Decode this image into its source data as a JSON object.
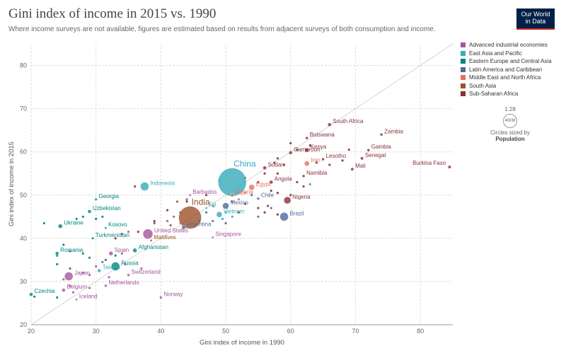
{
  "header": {
    "title": "Gini index of income in 2015 vs. 1990",
    "subtitle": "Where income surveys are not available, figures are estimated based on results from adjacent surveys of both consumption and income.",
    "logo_line1": "Our World",
    "logo_line2": "in Data"
  },
  "legend": {
    "items": [
      {
        "label": "Advanced industrial economies",
        "color": "#a2559c"
      },
      {
        "label": "East Asia and Pacific",
        "color": "#38aaba"
      },
      {
        "label": "Eastern Europe and Central Asia",
        "color": "#00847e"
      },
      {
        "label": "Latin America and Caribbean",
        "color": "#4c6a9c"
      },
      {
        "label": "Middle East and North Africa",
        "color": "#e56e5a"
      },
      {
        "label": "South Asia",
        "color": "#9a5129"
      },
      {
        "label": "Sub-Saharan Africa",
        "color": "#883039"
      }
    ],
    "size_ratio": "1:28",
    "size_circle_label": "400M",
    "size_caption": "Circles sized by",
    "size_variable": "Population"
  },
  "chart_data": {
    "type": "scatter",
    "title": "Gini index of income in 2015 vs. 1990",
    "xlabel": "Gini index of income in 1990",
    "ylabel": "Gini index of income in 2015",
    "xlim": [
      20,
      85
    ],
    "ylim": [
      20,
      85
    ],
    "xticks": [
      20,
      30,
      40,
      50,
      60,
      70,
      80
    ],
    "yticks": [
      20,
      30,
      40,
      50,
      60,
      70,
      80
    ],
    "grid": true,
    "reference_line": "y = x",
    "points": [
      {
        "label": "South Africa",
        "x": 66,
        "y": 66.3,
        "region": "Sub-Saharan Africa",
        "size": 2.5
      },
      {
        "label": "Zambia",
        "x": 74,
        "y": 64,
        "region": "Sub-Saharan Africa",
        "size": 2
      },
      {
        "label": "Botswana",
        "x": 62.5,
        "y": 63.2,
        "region": "Sub-Saharan Africa",
        "size": 2
      },
      {
        "label": "Gambia",
        "x": 72,
        "y": 60.4,
        "region": "Sub-Saharan Africa",
        "size": 2
      },
      {
        "label": "Kenya",
        "x": 62.5,
        "y": 60.4,
        "region": "Sub-Saharan Africa",
        "size": 3
      },
      {
        "label": "Cameroon",
        "x": 60,
        "y": 59.8,
        "region": "Sub-Saharan Africa",
        "size": 2.5
      },
      {
        "label": "Senegal",
        "x": 71,
        "y": 58.5,
        "region": "Sub-Saharan Africa",
        "size": 2.2
      },
      {
        "label": "Lesotho",
        "x": 65,
        "y": 58.3,
        "region": "Sub-Saharan Africa",
        "size": 2
      },
      {
        "label": "Iran",
        "x": 62.5,
        "y": 57.3,
        "region": "Middle East and North Africa",
        "size": 3.5
      },
      {
        "label": "Burkina Faso",
        "x": 84.5,
        "y": 56.5,
        "region": "Sub-Saharan Africa",
        "size": 2.2
      },
      {
        "label": "Mali",
        "x": 69.5,
        "y": 56,
        "region": "Sub-Saharan Africa",
        "size": 2.2
      },
      {
        "label": "Sudan",
        "x": 56,
        "y": 56.3,
        "region": "Sub-Saharan Africa",
        "size": 2.5
      },
      {
        "label": "Namibia",
        "x": 62,
        "y": 54.4,
        "region": "Sub-Saharan Africa",
        "size": 2
      },
      {
        "label": "Angola",
        "x": 57,
        "y": 53,
        "region": "Sub-Saharan Africa",
        "size": 2.5
      },
      {
        "label": "China",
        "x": 51,
        "y": 53,
        "region": "East Asia and Pacific",
        "size": 20
      },
      {
        "label": "Indonesia",
        "x": 37.5,
        "y": 52,
        "region": "East Asia and Pacific",
        "size": 6
      },
      {
        "label": "Egypt",
        "x": 54,
        "y": 51.8,
        "region": "Middle East and North Africa",
        "size": 4
      },
      {
        "label": "Algeria",
        "x": 51,
        "y": 50,
        "region": "Middle East and North Africa",
        "size": 2.5
      },
      {
        "label": "Barbados",
        "x": 44.5,
        "y": 50,
        "region": "Advanced industrial economies",
        "size": 1.5
      },
      {
        "label": "Nigeria",
        "x": 59.5,
        "y": 48.8,
        "region": "Sub-Saharan Africa",
        "size": 5
      },
      {
        "label": "Georgia",
        "x": 30,
        "y": 49,
        "region": "Eastern Europe and Central Asia",
        "size": 1.8
      },
      {
        "label": "Chile",
        "x": 55,
        "y": 49.2,
        "region": "Latin America and Caribbean",
        "size": 2
      },
      {
        "label": "Mexico",
        "x": 50,
        "y": 47.5,
        "region": "Latin America and Caribbean",
        "size": 4.5
      },
      {
        "label": "Fiji",
        "x": 47,
        "y": 47,
        "region": "East Asia and Pacific",
        "size": 1.5
      },
      {
        "label": "Uzbekistan",
        "x": 29,
        "y": 46.2,
        "region": "Eastern Europe and Central Asia",
        "size": 2.5
      },
      {
        "label": "India",
        "x": 44.5,
        "y": 44.8,
        "region": "South Asia",
        "size": 16
      },
      {
        "label": "Brazil",
        "x": 59,
        "y": 45,
        "region": "Latin America and Caribbean",
        "size": 6
      },
      {
        "label": "Vietnam",
        "x": 49,
        "y": 45.5,
        "region": "East Asia and Pacific",
        "size": 4
      },
      {
        "label": "Ukraine",
        "x": 24.5,
        "y": 42.8,
        "region": "Eastern Europe and Central Asia",
        "size": 3
      },
      {
        "label": "Argentina",
        "x": 43.5,
        "y": 42.5,
        "region": "Latin America and Caribbean",
        "size": 2.8
      },
      {
        "label": "United States",
        "x": 38,
        "y": 41,
        "region": "Advanced industrial economies",
        "size": 7
      },
      {
        "label": "Kosovo",
        "x": 31.5,
        "y": 42.4,
        "region": "Eastern Europe and Central Asia",
        "size": 1.5
      },
      {
        "label": "Singapore",
        "x": 48,
        "y": 40.2,
        "region": "Advanced industrial economies",
        "size": 1.5
      },
      {
        "label": "Turkmenistan",
        "x": 29.5,
        "y": 40,
        "region": "Eastern Europe and Central Asia",
        "size": 1.8
      },
      {
        "label": "Maldives",
        "x": 38.5,
        "y": 39.5,
        "region": "South Asia",
        "size": 1.5
      },
      {
        "label": "Afghanistan",
        "x": 36,
        "y": 37.2,
        "region": "Eastern Europe and Central Asia",
        "size": 3
      },
      {
        "label": "Romania",
        "x": 24,
        "y": 36.5,
        "region": "Eastern Europe and Central Asia",
        "size": 2.5
      },
      {
        "label": "Spain",
        "x": 32.3,
        "y": 36.5,
        "region": "Advanced industrial economies",
        "size": 3
      },
      {
        "label": "Russia",
        "x": 33,
        "y": 33.5,
        "region": "Eastern Europe and Central Asia",
        "size": 6
      },
      {
        "label": "Taiwan",
        "x": 30.5,
        "y": 32.5,
        "region": "East Asia and Pacific",
        "size": 2.5
      },
      {
        "label": "Japan",
        "x": 25.8,
        "y": 31.2,
        "region": "Advanced industrial economies",
        "size": 6
      },
      {
        "label": "Switzerland",
        "x": 35,
        "y": 31.5,
        "region": "Advanced industrial economies",
        "size": 2
      },
      {
        "label": "Netherlands",
        "x": 31.5,
        "y": 29,
        "region": "Advanced industrial economies",
        "size": 2
      },
      {
        "label": "Belgium",
        "x": 25,
        "y": 28,
        "region": "Advanced industrial economies",
        "size": 2.5
      },
      {
        "label": "Czechia",
        "x": 20,
        "y": 27,
        "region": "Eastern Europe and Central Asia",
        "size": 2.5
      },
      {
        "label": "Iceland",
        "x": 27,
        "y": 25.8,
        "region": "Advanced industrial economies",
        "size": 1.5
      },
      {
        "label": "Norway",
        "x": 40,
        "y": 26.3,
        "region": "Advanced industrial economies",
        "size": 2
      }
    ],
    "unlabeled_points": [
      {
        "x": 60,
        "y": 62,
        "region": "Sub-Saharan Africa"
      },
      {
        "x": 61,
        "y": 60.5,
        "region": "Sub-Saharan Africa"
      },
      {
        "x": 58,
        "y": 58.5,
        "region": "Sub-Saharan Africa"
      },
      {
        "x": 57.5,
        "y": 57.5,
        "region": "Sub-Saharan Africa"
      },
      {
        "x": 59,
        "y": 57,
        "region": "Sub-Saharan Africa"
      },
      {
        "x": 64,
        "y": 57.5,
        "region": "Sub-Saharan Africa"
      },
      {
        "x": 66,
        "y": 57,
        "region": "Sub-Saharan Africa"
      },
      {
        "x": 69,
        "y": 60.5,
        "region": "Sub-Saharan Africa"
      },
      {
        "x": 68,
        "y": 58,
        "region": "Sub-Saharan Africa"
      },
      {
        "x": 63,
        "y": 61.5,
        "region": "Sub-Saharan Africa"
      },
      {
        "x": 56,
        "y": 55,
        "region": "Sub-Saharan Africa"
      },
      {
        "x": 58,
        "y": 55,
        "region": "Sub-Saharan Africa"
      },
      {
        "x": 61,
        "y": 53,
        "region": "Sub-Saharan Africa"
      },
      {
        "x": 62,
        "y": 52,
        "region": "Sub-Saharan Africa"
      },
      {
        "x": 60,
        "y": 50,
        "region": "Sub-Saharan Africa"
      },
      {
        "x": 58,
        "y": 50.5,
        "region": "Sub-Saharan Africa"
      },
      {
        "x": 57,
        "y": 51,
        "region": "Sub-Saharan Africa"
      },
      {
        "x": 53,
        "y": 54,
        "region": "Sub-Saharan Africa"
      },
      {
        "x": 55,
        "y": 53,
        "region": "Sub-Saharan Africa"
      },
      {
        "x": 47,
        "y": 50,
        "region": "Sub-Saharan Africa"
      },
      {
        "x": 44,
        "y": 48.5,
        "region": "Sub-Saharan Africa"
      },
      {
        "x": 43,
        "y": 46,
        "region": "Sub-Saharan Africa"
      },
      {
        "x": 41,
        "y": 46.5,
        "region": "Sub-Saharan Africa"
      },
      {
        "x": 52,
        "y": 46,
        "region": "Sub-Saharan Africa"
      },
      {
        "x": 53,
        "y": 48,
        "region": "Sub-Saharan Africa"
      },
      {
        "x": 55,
        "y": 47,
        "region": "Sub-Saharan Africa"
      },
      {
        "x": 56,
        "y": 46,
        "region": "Sub-Saharan Africa"
      },
      {
        "x": 39,
        "y": 44,
        "region": "Sub-Saharan Africa"
      },
      {
        "x": 36,
        "y": 52,
        "region": "Sub-Saharan Africa"
      },
      {
        "x": 36.5,
        "y": 41.5,
        "region": "Sub-Saharan Africa"
      },
      {
        "x": 34,
        "y": 41,
        "region": "Sub-Saharan Africa"
      },
      {
        "x": 33,
        "y": 40,
        "region": "Sub-Saharan Africa"
      },
      {
        "x": 58,
        "y": 45.5,
        "region": "Sub-Saharan Africa"
      },
      {
        "x": 56.5,
        "y": 47.5,
        "region": "Sub-Saharan Africa"
      },
      {
        "x": 63,
        "y": 52.5,
        "region": "East Asia and Pacific"
      },
      {
        "x": 49,
        "y": 53.5,
        "region": "East Asia and Pacific"
      },
      {
        "x": 48,
        "y": 47.5,
        "region": "East Asia and Pacific"
      },
      {
        "x": 50,
        "y": 46,
        "region": "East Asia and Pacific"
      },
      {
        "x": 51,
        "y": 45,
        "region": "East Asia and Pacific"
      },
      {
        "x": 49.5,
        "y": 44.5,
        "region": "East Asia and Pacific"
      },
      {
        "x": 51,
        "y": 48.5,
        "region": "Latin America and Caribbean"
      },
      {
        "x": 54,
        "y": 50,
        "region": "Latin America and Caribbean"
      },
      {
        "x": 48,
        "y": 44,
        "region": "Latin America and Caribbean"
      },
      {
        "x": 50,
        "y": 43.5,
        "region": "Latin America and Caribbean"
      },
      {
        "x": 46,
        "y": 44,
        "region": "Latin America and Caribbean"
      },
      {
        "x": 55,
        "y": 45,
        "region": "Latin America and Caribbean"
      },
      {
        "x": 47,
        "y": 46,
        "region": "Latin America and Caribbean"
      },
      {
        "x": 57,
        "y": 47,
        "region": "Latin America and Caribbean"
      },
      {
        "x": 22,
        "y": 43.5,
        "region": "Eastern Europe and Central Asia"
      },
      {
        "x": 27,
        "y": 44.5,
        "region": "Eastern Europe and Central Asia"
      },
      {
        "x": 28,
        "y": 45,
        "region": "Eastern Europe and Central Asia"
      },
      {
        "x": 30,
        "y": 44.5,
        "region": "Eastern Europe and Central Asia"
      },
      {
        "x": 31,
        "y": 45,
        "region": "Eastern Europe and Central Asia"
      },
      {
        "x": 25,
        "y": 38.5,
        "region": "Eastern Europe and Central Asia"
      },
      {
        "x": 26,
        "y": 37,
        "region": "Eastern Europe and Central Asia"
      },
      {
        "x": 24,
        "y": 36,
        "region": "Eastern Europe and Central Asia"
      },
      {
        "x": 29,
        "y": 35.5,
        "region": "Eastern Europe and Central Asia"
      },
      {
        "x": 31.5,
        "y": 35,
        "region": "Eastern Europe and Central Asia"
      },
      {
        "x": 28,
        "y": 36.5,
        "region": "Eastern Europe and Central Asia"
      },
      {
        "x": 33,
        "y": 36,
        "region": "Eastern Europe and Central Asia"
      },
      {
        "x": 24,
        "y": 34,
        "region": "Eastern Europe and Central Asia"
      },
      {
        "x": 26,
        "y": 33,
        "region": "Eastern Europe and Central Asia"
      },
      {
        "x": 20.5,
        "y": 26.5,
        "region": "Eastern Europe and Central Asia"
      },
      {
        "x": 24,
        "y": 26.3,
        "region": "Eastern Europe and Central Asia"
      },
      {
        "x": 31,
        "y": 34.5,
        "region": "Advanced industrial economies"
      },
      {
        "x": 33,
        "y": 33,
        "region": "Advanced industrial economies"
      },
      {
        "x": 34.5,
        "y": 34,
        "region": "Advanced industrial economies"
      },
      {
        "x": 30,
        "y": 33.5,
        "region": "Advanced industrial economies"
      },
      {
        "x": 28,
        "y": 32,
        "region": "Advanced industrial economies"
      },
      {
        "x": 25,
        "y": 30.5,
        "region": "Advanced industrial economies"
      },
      {
        "x": 26,
        "y": 29,
        "region": "Advanced industrial economies"
      },
      {
        "x": 29,
        "y": 31.5,
        "region": "Advanced industrial economies"
      },
      {
        "x": 32,
        "y": 31,
        "region": "Advanced industrial economies"
      },
      {
        "x": 34,
        "y": 36.5,
        "region": "Advanced industrial economies"
      },
      {
        "x": 35,
        "y": 41.5,
        "region": "Advanced industrial economies"
      },
      {
        "x": 29,
        "y": 28.5,
        "region": "Advanced industrial economies"
      },
      {
        "x": 37,
        "y": 33,
        "region": "Advanced industrial economies"
      },
      {
        "x": 26.5,
        "y": 27.5,
        "region": "Advanced industrial economies"
      },
      {
        "x": 44,
        "y": 49,
        "region": "Advanced industrial economies"
      },
      {
        "x": 42,
        "y": 45,
        "region": "Advanced industrial economies"
      },
      {
        "x": 41,
        "y": 44,
        "region": "Advanced industrial economies"
      },
      {
        "x": 39,
        "y": 43.5,
        "region": "South Asia"
      },
      {
        "x": 42.5,
        "y": 48.5,
        "region": "South Asia"
      },
      {
        "x": 41.5,
        "y": 43,
        "region": "South Asia"
      },
      {
        "x": 53,
        "y": 50.5,
        "region": "Middle East and North Africa"
      },
      {
        "x": 52,
        "y": 49,
        "region": "Middle East and North Africa"
      },
      {
        "x": 43,
        "y": 43.5,
        "region": "Middle East and North Africa"
      }
    ]
  }
}
